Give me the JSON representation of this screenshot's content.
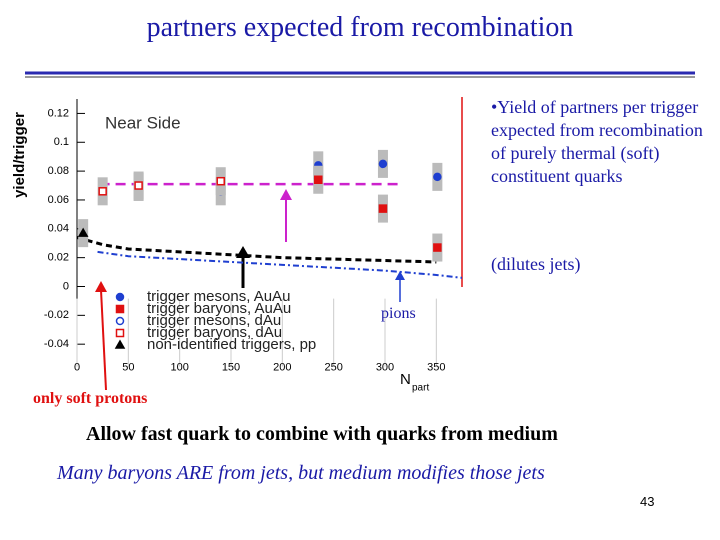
{
  "title": "partners expected from recombination",
  "chart_data": {
    "type": "scatter",
    "annotation": "Near Side",
    "ylabel": "yield/trigger",
    "xlabel": "N",
    "xlabel_sub": "part",
    "xlim": [
      0,
      375
    ],
    "ylim": [
      -0.05,
      0.13
    ],
    "xticks": [
      0,
      50,
      100,
      150,
      200,
      250,
      300,
      350
    ],
    "yticks": [
      0.12,
      0.1,
      0.08,
      0.06,
      0.04,
      0.02,
      0,
      -0.02,
      -0.04
    ],
    "series": [
      {
        "name": "trigger mesons, AuAu",
        "color": "#1f3fd0",
        "marker": "circle",
        "x": [
          235,
          298,
          351
        ],
        "values": [
          0.084,
          0.085,
          0.076
        ]
      },
      {
        "name": "trigger baryons, AuAu",
        "color": "#e01010",
        "marker": "square",
        "x": [
          235,
          298,
          351
        ],
        "values": [
          0.074,
          0.054,
          0.027
        ]
      },
      {
        "name": "trigger mesons, dAu",
        "color": "#1f3fd0",
        "marker": "open-circle",
        "x": [
          60,
          140
        ],
        "values": [
          0.069,
          0.066
        ]
      },
      {
        "name": "trigger baryons, dAu",
        "color": "#e01010",
        "marker": "open-square",
        "x": [
          25,
          60,
          140
        ],
        "values": [
          0.066,
          0.07,
          0.073
        ]
      },
      {
        "name": "non-identified triggers, pp",
        "color": "#000000",
        "marker": "triangle",
        "x": [
          6
        ],
        "values": [
          0.037
        ]
      }
    ],
    "curves": [
      {
        "color": "#000000",
        "dash": "6 4",
        "width": 3,
        "x": [
          0,
          25,
          50,
          100,
          150,
          200,
          250,
          300,
          350
        ],
        "values": [
          0.034,
          0.029,
          0.026,
          0.024,
          0.022,
          0.02,
          0.019,
          0.018,
          0.017
        ]
      },
      {
        "color": "#1f3fd0",
        "dash": "6 3 2 3",
        "width": 2,
        "x": [
          20,
          50,
          100,
          150,
          200,
          250,
          300,
          350,
          375
        ],
        "values": [
          0.024,
          0.021,
          0.019,
          0.017,
          0.015,
          0.013,
          0.011,
          0.008,
          0.006
        ]
      },
      {
        "color": "#cc22cc",
        "dash": "10 6",
        "width": 2.5,
        "x": [
          22,
          316
        ],
        "values": [
          0.071,
          0.071
        ]
      }
    ]
  },
  "bullet": "•Yield of partners per trigger expected from recombination of purely thermal (soft) constituent quarks",
  "note": "(dilutes jets)",
  "pions_label": "pions",
  "soft_protons": "only soft protons",
  "line1": "Allow fast quark to combine with quarks from medium",
  "line2": "Many baryons ARE from jets, but medium modifies those jets",
  "page_number": "43"
}
